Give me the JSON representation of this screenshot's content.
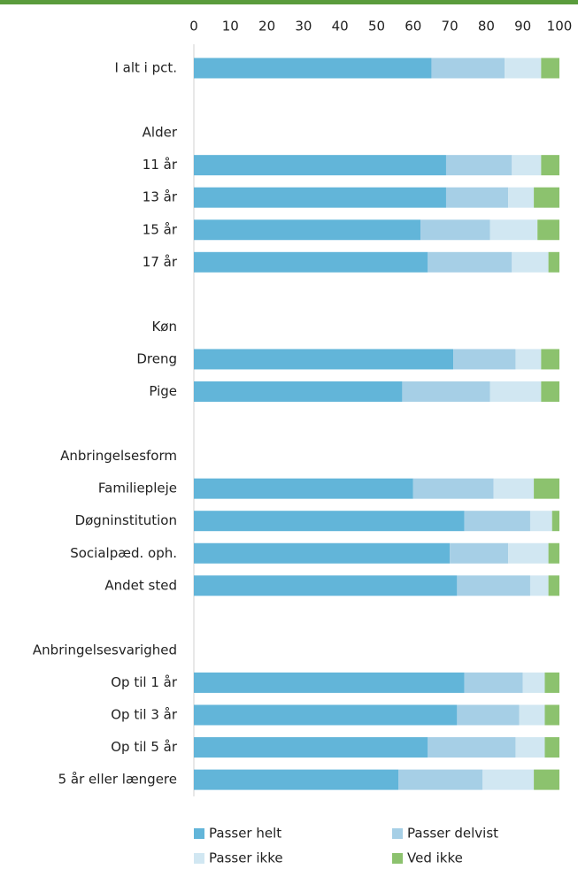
{
  "chart_data": {
    "type": "stacked-bar-horizontal",
    "categories": [
      "I alt i pct.",
      null,
      "Alder",
      "11 år",
      "13 år",
      "15 år",
      "17 år",
      null,
      "Køn",
      "Dreng",
      "Pige",
      null,
      "Anbringelsesform",
      "Familiepleje",
      "Døgninstitution",
      "Socialpæd. oph.",
      "Andet sted",
      null,
      "Anbringelsesvarighed",
      "Op til 1 år",
      "Op til 3 år",
      "Op til 5 år",
      "5 år eller længere"
    ],
    "series": [
      {
        "name": "Passer helt",
        "color": "#62b5d9",
        "values": [
          65,
          null,
          null,
          69,
          69,
          62,
          64,
          null,
          null,
          71,
          57,
          null,
          null,
          60,
          74,
          70,
          72,
          null,
          null,
          74,
          72,
          64,
          56
        ]
      },
      {
        "name": "Passer delvist",
        "color": "#a6cfe6",
        "values": [
          20,
          null,
          null,
          18,
          17,
          19,
          23,
          null,
          null,
          17,
          24,
          null,
          null,
          22,
          18,
          16,
          20,
          null,
          null,
          16,
          17,
          24,
          23
        ]
      },
      {
        "name": "Passer ikke",
        "color": "#d1e7f2",
        "values": [
          10,
          null,
          null,
          8,
          7,
          13,
          10,
          null,
          null,
          7,
          14,
          null,
          null,
          11,
          6,
          11,
          5,
          null,
          null,
          6,
          7,
          8,
          14
        ]
      },
      {
        "name": "Ved ikke",
        "color": "#8cc26e",
        "values": [
          5,
          null,
          null,
          5,
          7,
          6,
          3,
          null,
          null,
          5,
          5,
          null,
          null,
          7,
          2,
          3,
          3,
          null,
          null,
          4,
          4,
          4,
          7
        ]
      }
    ],
    "xlim": [
      0,
      100
    ],
    "xticks": [
      0,
      10,
      20,
      30,
      40,
      50,
      60,
      70,
      80,
      90,
      100
    ]
  }
}
